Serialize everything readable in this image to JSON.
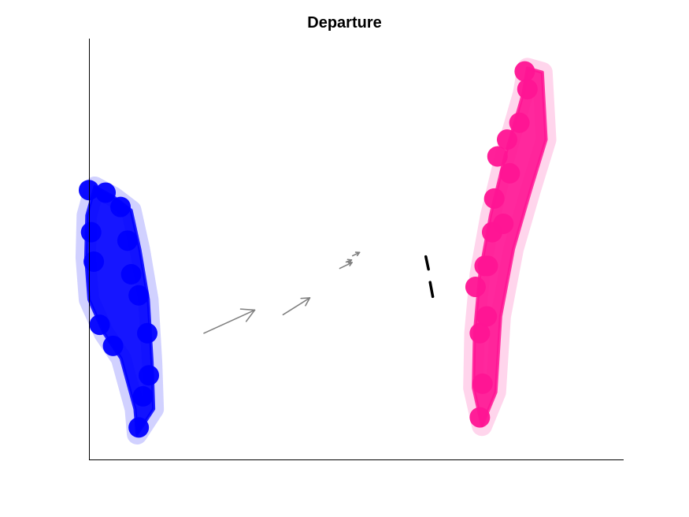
{
  "chart_data": {
    "type": "scatter",
    "title": "Departure",
    "xlabel": "",
    "ylabel": "",
    "grid": false,
    "axis_ticks": false,
    "colors": {
      "cluster_a": "#0000ff",
      "cluster_b": "#ff1493",
      "arrow": "#808080",
      "divider": "#000000"
    },
    "clusters": [
      {
        "color_key": "cluster_a",
        "outline": [
          [
            0.011,
            0.648
          ],
          [
            0.046,
            0.624
          ],
          [
            0.079,
            0.592
          ],
          [
            0.095,
            0.5
          ],
          [
            0.111,
            0.38
          ],
          [
            0.118,
            0.23
          ],
          [
            0.121,
            0.12
          ],
          [
            0.09,
            0.06
          ],
          [
            0.086,
            0.12
          ],
          [
            0.06,
            0.24
          ],
          [
            0.028,
            0.3
          ],
          [
            0.0,
            0.38
          ],
          [
            -0.006,
            0.48
          ],
          [
            -0.004,
            0.58
          ]
        ],
        "anchor_points": [
          [
            0.0,
            0.64
          ],
          [
            0.031,
            0.634
          ],
          [
            0.059,
            0.6
          ],
          [
            0.072,
            0.52
          ],
          [
            0.079,
            0.44
          ],
          [
            0.093,
            0.39
          ],
          [
            0.109,
            0.3
          ],
          [
            0.112,
            0.2
          ],
          [
            0.101,
            0.15
          ],
          [
            0.093,
            0.076
          ],
          [
            0.045,
            0.27
          ],
          [
            0.02,
            0.32
          ],
          [
            0.009,
            0.47
          ],
          [
            0.004,
            0.54
          ]
        ]
      },
      {
        "color_key": "cluster_b",
        "outline": [
          [
            0.82,
            0.93
          ],
          [
            0.848,
            0.92
          ],
          [
            0.855,
            0.76
          ],
          [
            0.826,
            0.64
          ],
          [
            0.794,
            0.5
          ],
          [
            0.77,
            0.34
          ],
          [
            0.761,
            0.16
          ],
          [
            0.735,
            0.08
          ],
          [
            0.719,
            0.17
          ],
          [
            0.721,
            0.3
          ],
          [
            0.731,
            0.44
          ],
          [
            0.751,
            0.58
          ],
          [
            0.778,
            0.72
          ],
          [
            0.812,
            0.87
          ]
        ],
        "anchor_points": [
          [
            0.815,
            0.922
          ],
          [
            0.82,
            0.88
          ],
          [
            0.805,
            0.8
          ],
          [
            0.782,
            0.76
          ],
          [
            0.764,
            0.72
          ],
          [
            0.758,
            0.62
          ],
          [
            0.754,
            0.54
          ],
          [
            0.74,
            0.46
          ],
          [
            0.723,
            0.41
          ],
          [
            0.744,
            0.34
          ],
          [
            0.731,
            0.3
          ],
          [
            0.736,
            0.18
          ],
          [
            0.731,
            0.1
          ],
          [
            0.746,
            0.46
          ],
          [
            0.775,
            0.56
          ],
          [
            0.787,
            0.68
          ]
        ]
      }
    ],
    "arrows": [
      {
        "from": [
          0.215,
          0.3
        ],
        "to": [
          0.31,
          0.355
        ]
      },
      {
        "from": [
          0.363,
          0.344
        ],
        "to": [
          0.413,
          0.384
        ]
      },
      {
        "from": [
          0.469,
          0.454
        ],
        "to": [
          0.492,
          0.468
        ]
      },
      {
        "from": [
          0.481,
          0.469
        ],
        "to": [
          0.491,
          0.474
        ]
      },
      {
        "from": [
          0.493,
          0.484
        ],
        "to": [
          0.506,
          0.492
        ]
      }
    ],
    "divider": {
      "segments": [
        {
          "from": [
            0.63,
            0.482
          ],
          "to": [
            0.635,
            0.452
          ]
        },
        {
          "from": [
            0.638,
            0.421
          ],
          "to": [
            0.643,
            0.387
          ]
        }
      ]
    }
  }
}
